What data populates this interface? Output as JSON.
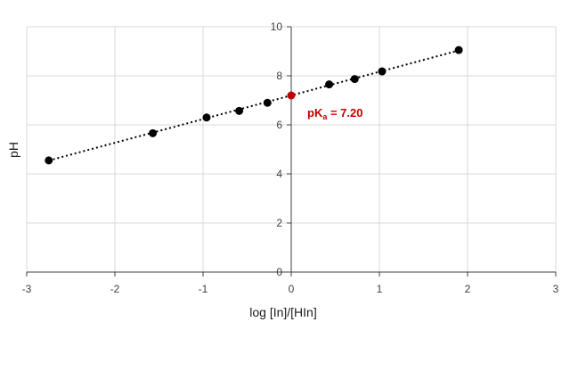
{
  "chart_data": {
    "type": "scatter",
    "xlabel": "log [In]/[HIn]",
    "ylabel": "pH",
    "xlim": [
      -3,
      3
    ],
    "ylim": [
      0,
      10
    ],
    "xticks": [
      -3,
      -2,
      -1,
      0,
      1,
      2,
      3
    ],
    "yticks": [
      0,
      2,
      4,
      6,
      8,
      10
    ],
    "grid": true,
    "legend": "none",
    "series": [
      {
        "color": "#000000",
        "marker": "circle",
        "points": [
          {
            "x": -2.75,
            "y": 4.55
          },
          {
            "x": -1.57,
            "y": 5.66
          },
          {
            "x": -0.96,
            "y": 6.3
          },
          {
            "x": -0.59,
            "y": 6.57
          },
          {
            "x": -0.27,
            "y": 6.9
          },
          {
            "x": 0.43,
            "y": 7.65
          },
          {
            "x": 0.72,
            "y": 7.87
          },
          {
            "x": 1.03,
            "y": 8.18
          },
          {
            "x": 1.9,
            "y": 9.05
          }
        ]
      }
    ],
    "trendline": {
      "style": "dotted",
      "color": "#000000",
      "x_from": -2.75,
      "x_to": 1.9,
      "slope": 0.965,
      "intercept": 7.2
    },
    "highlight_point": {
      "x": 0,
      "y": 7.2,
      "color": "#c00000"
    },
    "annotation": {
      "text_main": "pK",
      "text_sub": "a",
      "text_value": " = 7.20",
      "color": "#c00000"
    }
  }
}
